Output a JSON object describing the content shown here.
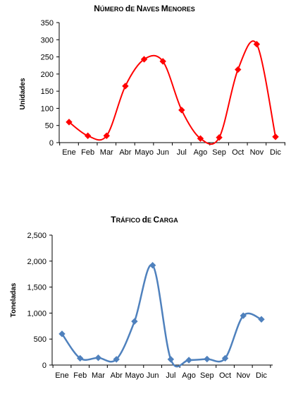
{
  "chart_data": [
    {
      "type": "line",
      "title": "Número de Naves Menores",
      "xlabel": "",
      "ylabel": "Unidades",
      "categories": [
        "Ene",
        "Feb",
        "Mar",
        "Abr",
        "Mayo",
        "Jun",
        "Jul",
        "Ago",
        "Sep",
        "Oct",
        "Nov",
        "Dic"
      ],
      "series": [
        {
          "values": [
            60,
            20,
            20,
            165,
            243,
            237,
            95,
            12,
            15,
            213,
            287,
            17
          ]
        }
      ],
      "ylim": [
        0,
        350
      ],
      "yticks": [
        "0",
        "50",
        "100",
        "150",
        "200",
        "250",
        "300",
        "350"
      ],
      "grid": false,
      "color": "#ff0000",
      "marker": "diamond",
      "smooth": true
    },
    {
      "type": "line",
      "title": "Tráfico de Carga",
      "xlabel": "",
      "ylabel": "Toneladas",
      "categories": [
        "Ene",
        "Feb",
        "Mar",
        "Abr",
        "Mayo",
        "Jun",
        "Jul",
        "Ago",
        "Sep",
        "Oct",
        "Nov",
        "Dic"
      ],
      "series": [
        {
          "values": [
            600,
            130,
            140,
            110,
            840,
            1920,
            110,
            95,
            115,
            130,
            950,
            880
          ]
        }
      ],
      "ylim": [
        0,
        2500
      ],
      "yticks": [
        "0",
        "500",
        "1,000",
        "1,500",
        "2,000",
        "2,500"
      ],
      "grid": false,
      "color": "#4f81bd",
      "marker": "diamond",
      "smooth": true
    }
  ]
}
